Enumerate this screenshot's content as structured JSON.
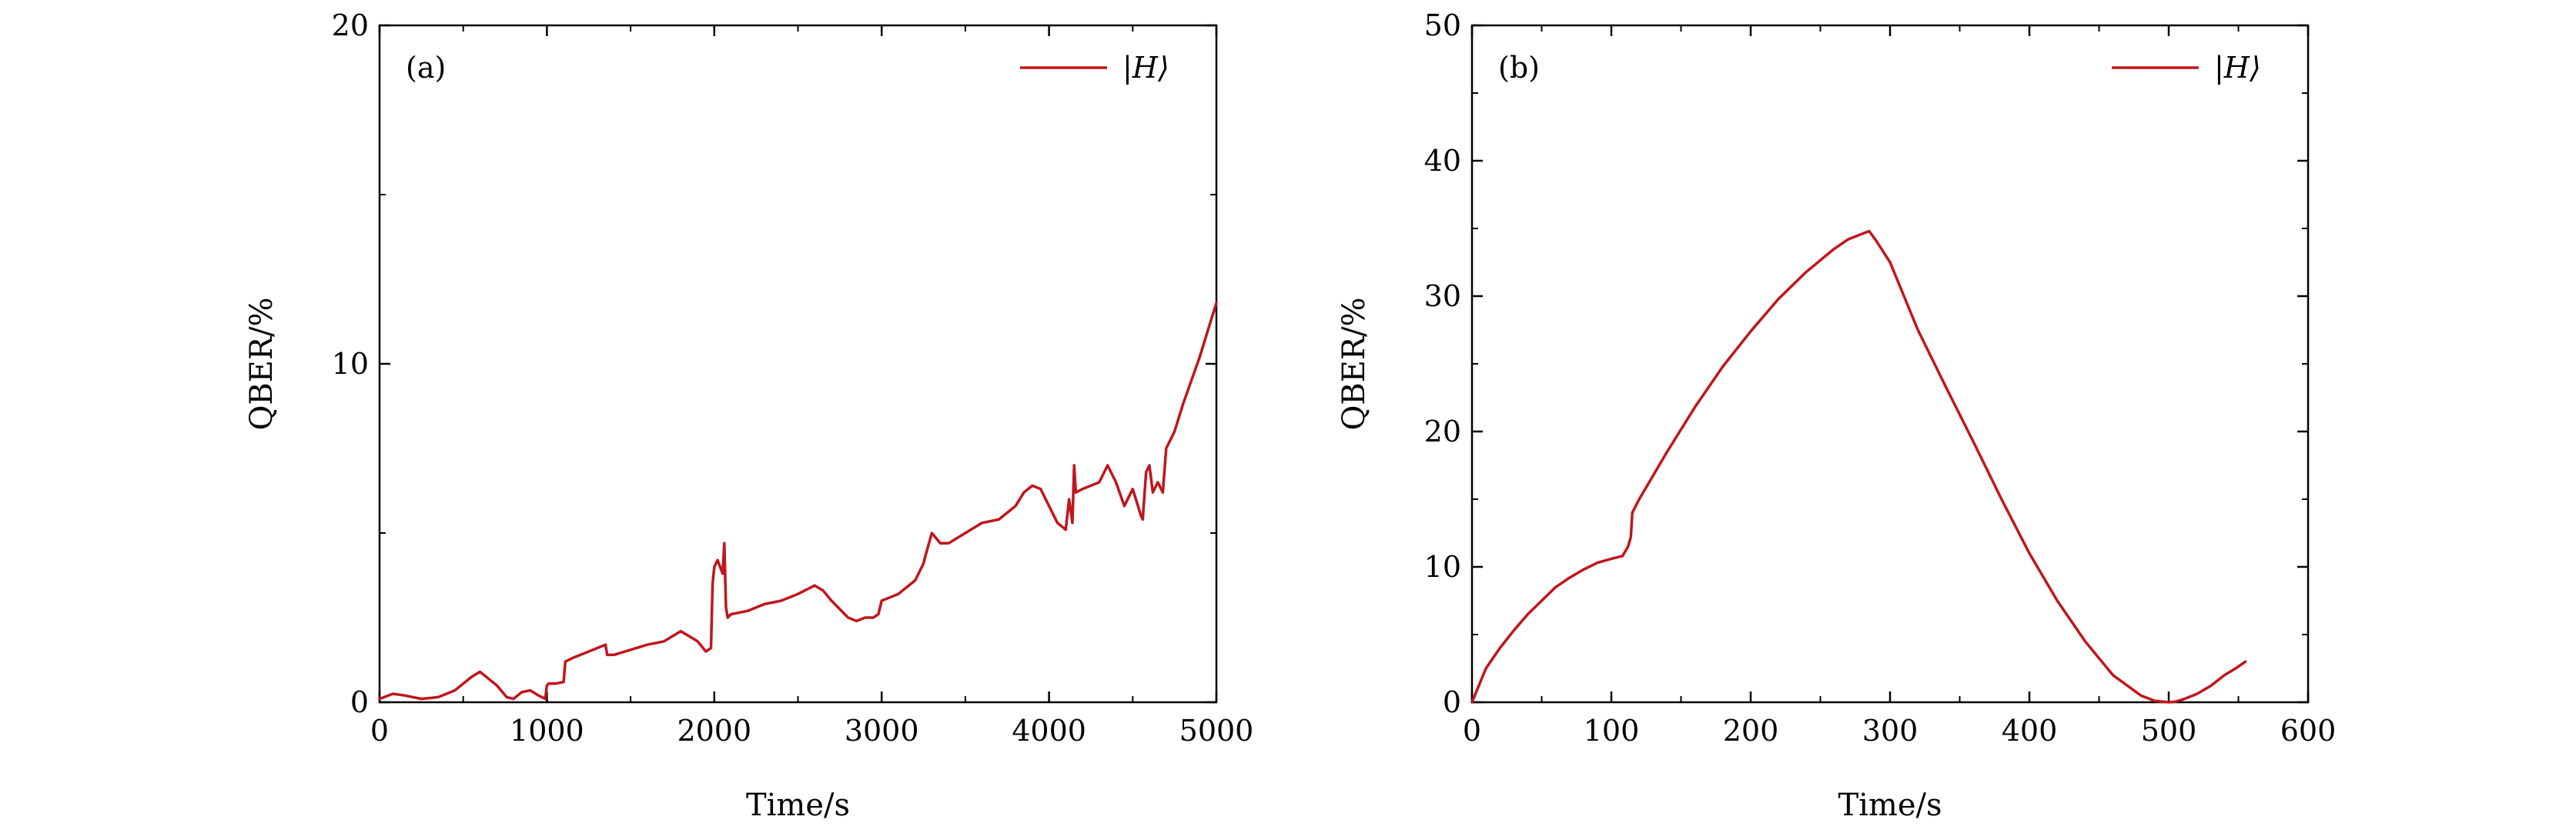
{
  "chart_data": [
    {
      "type": "line",
      "panel_label": "(a)",
      "xlabel": "Time/s",
      "ylabel": "QBER/%",
      "xlim": [
        0,
        5000
      ],
      "ylim": [
        0,
        20
      ],
      "xticks": [
        0,
        1000,
        2000,
        3000,
        4000,
        5000
      ],
      "yticks": [
        0,
        10,
        20
      ],
      "xtick_labels": [
        "0",
        "1000",
        "2000",
        "3000",
        "4000",
        "5000"
      ],
      "ytick_labels": [
        "0",
        "10",
        "20"
      ],
      "legend_position": "top-right",
      "color": "#c0161d",
      "series": [
        {
          "name": "|H⟩",
          "x": [
            0,
            80,
            150,
            250,
            350,
            450,
            550,
            600,
            650,
            700,
            760,
            800,
            850,
            900,
            950,
            990,
            1000,
            1010,
            1050,
            1100,
            1110,
            1150,
            1200,
            1300,
            1350,
            1360,
            1400,
            1500,
            1600,
            1700,
            1800,
            1900,
            1950,
            1980,
            1990,
            2000,
            2020,
            2050,
            2060,
            2070,
            2080,
            2100,
            2200,
            2300,
            2400,
            2500,
            2600,
            2650,
            2700,
            2800,
            2850,
            2900,
            2950,
            2980,
            3000,
            3050,
            3100,
            3200,
            3250,
            3260,
            3300,
            3350,
            3400,
            3500,
            3600,
            3700,
            3800,
            3850,
            3900,
            3950,
            4000,
            4050,
            4100,
            4120,
            4140,
            4150,
            4160,
            4200,
            4300,
            4350,
            4400,
            4450,
            4500,
            4550,
            4560,
            4580,
            4600,
            4620,
            4650,
            4680,
            4700,
            4750,
            4800,
            4850,
            4900,
            4950,
            5000
          ],
          "values": [
            0.1,
            0.25,
            0.2,
            0.1,
            0.15,
            0.35,
            0.75,
            0.9,
            0.7,
            0.5,
            0.15,
            0.1,
            0.3,
            0.35,
            0.2,
            0.1,
            0.5,
            0.55,
            0.55,
            0.6,
            1.2,
            1.3,
            1.4,
            1.6,
            1.7,
            1.4,
            1.4,
            1.55,
            1.7,
            1.8,
            2.1,
            1.8,
            1.5,
            1.6,
            3.5,
            4.0,
            4.2,
            3.8,
            4.7,
            2.8,
            2.5,
            2.6,
            2.7,
            2.9,
            3.0,
            3.2,
            3.45,
            3.3,
            3.0,
            2.5,
            2.4,
            2.5,
            2.5,
            2.6,
            3.0,
            3.1,
            3.2,
            3.6,
            4.1,
            4.3,
            5.0,
            4.7,
            4.7,
            5.0,
            5.3,
            5.4,
            5.8,
            6.2,
            6.4,
            6.3,
            5.8,
            5.3,
            5.1,
            6.0,
            5.3,
            7.0,
            6.2,
            6.3,
            6.5,
            7.0,
            6.5,
            5.8,
            6.3,
            5.5,
            5.4,
            6.8,
            7.0,
            6.2,
            6.5,
            6.2,
            7.5,
            8.0,
            8.8,
            9.5,
            10.2,
            11.0,
            11.8
          ]
        }
      ]
    },
    {
      "type": "line",
      "panel_label": "(b)",
      "xlabel": "Time/s",
      "ylabel": "QBER/%",
      "xlim": [
        0,
        600
      ],
      "ylim": [
        0,
        50
      ],
      "xticks": [
        0,
        100,
        200,
        300,
        400,
        500,
        600
      ],
      "yticks": [
        0,
        10,
        20,
        30,
        40,
        50
      ],
      "xtick_labels": [
        "0",
        "100",
        "200",
        "300",
        "400",
        "500",
        "600"
      ],
      "ytick_labels": [
        "0",
        "10",
        "20",
        "30",
        "40",
        "50"
      ],
      "legend_position": "top-right",
      "color": "#c0161d",
      "series": [
        {
          "name": "|H⟩",
          "x": [
            0,
            10,
            20,
            30,
            40,
            50,
            60,
            70,
            80,
            90,
            100,
            108,
            112,
            114,
            115,
            120,
            140,
            160,
            180,
            200,
            220,
            240,
            260,
            270,
            280,
            285,
            290,
            300,
            310,
            320,
            340,
            360,
            380,
            400,
            420,
            440,
            460,
            480,
            490,
            500,
            505,
            510,
            520,
            530,
            540,
            548,
            555
          ],
          "values": [
            0,
            2.5,
            4.0,
            5.3,
            6.5,
            7.5,
            8.5,
            9.2,
            9.8,
            10.3,
            10.6,
            10.8,
            11.5,
            12.2,
            14.0,
            15.0,
            18.5,
            21.8,
            24.8,
            27.4,
            29.8,
            31.8,
            33.5,
            34.2,
            34.6,
            34.8,
            34.1,
            32.5,
            30.0,
            27.5,
            23.3,
            19.2,
            15.0,
            11.0,
            7.5,
            4.5,
            2.0,
            0.5,
            0.1,
            0.0,
            0.05,
            0.2,
            0.6,
            1.2,
            2.0,
            2.5,
            3.0
          ]
        }
      ]
    }
  ]
}
